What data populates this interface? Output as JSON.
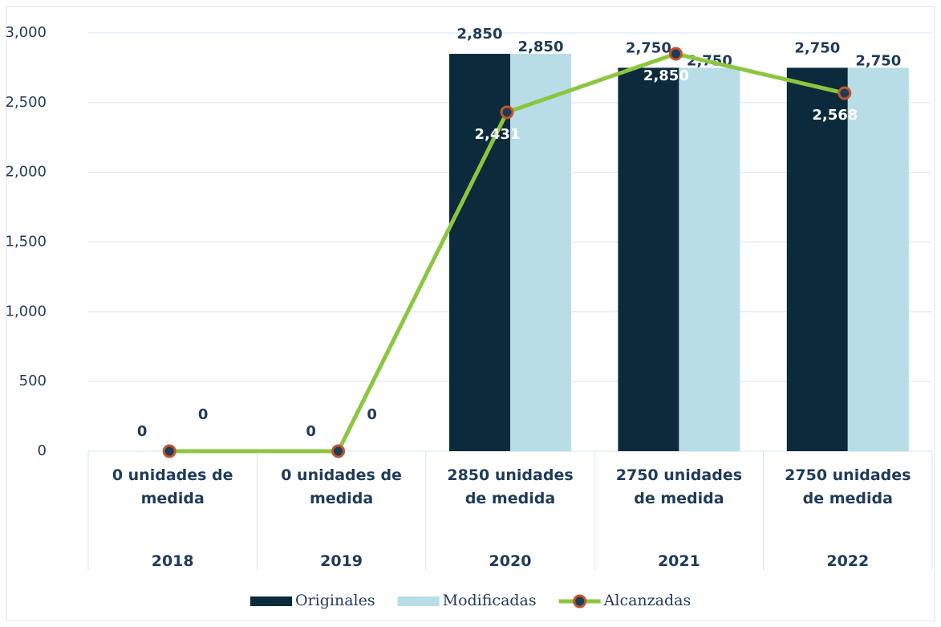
{
  "chart_data": {
    "type": "bar-line",
    "categories": [
      "2018",
      "2019",
      "2020",
      "2021",
      "2022"
    ],
    "category_sublabels": [
      "0 unidades de medida",
      "0 unidades de medida",
      "2850 unidades de medida",
      "2750 unidades de medida",
      "2750 unidades de medida"
    ],
    "series": [
      {
        "name": "Originales",
        "type": "bar",
        "color": "#0b2a3b",
        "values": [
          0,
          0,
          2850,
          2750,
          2750
        ],
        "value_labels": [
          "0",
          "0",
          "2,850",
          "2,750",
          "2,750"
        ]
      },
      {
        "name": "Modificadas",
        "type": "bar",
        "color": "#b8dde6",
        "values": [
          0,
          0,
          2850,
          2750,
          2750
        ],
        "value_labels": [
          "0",
          "0",
          "2,850",
          "2,750",
          "2,750"
        ]
      },
      {
        "name": "Alcanzadas",
        "type": "line",
        "color": "#8cc63f",
        "marker_color": "#1f3b5a",
        "marker_edge": "#c0562a",
        "values": [
          0,
          0,
          2431,
          2850,
          2568
        ],
        "value_labels": [
          null,
          null,
          "2,431",
          "2,850",
          "2,568"
        ]
      }
    ],
    "ylim": [
      0,
      3000
    ],
    "yticks": [
      0,
      {
        "value": 500,
        "label": "500"
      },
      {
        "value": 1000,
        "label": "1,000"
      },
      {
        "value": 1500,
        "label": "1,500"
      },
      {
        "value": 2000,
        "label": "2,000"
      },
      {
        "value": 2500,
        "label": "2,500"
      },
      {
        "value": 3000,
        "label": "3,000"
      }
    ],
    "grid": true
  }
}
